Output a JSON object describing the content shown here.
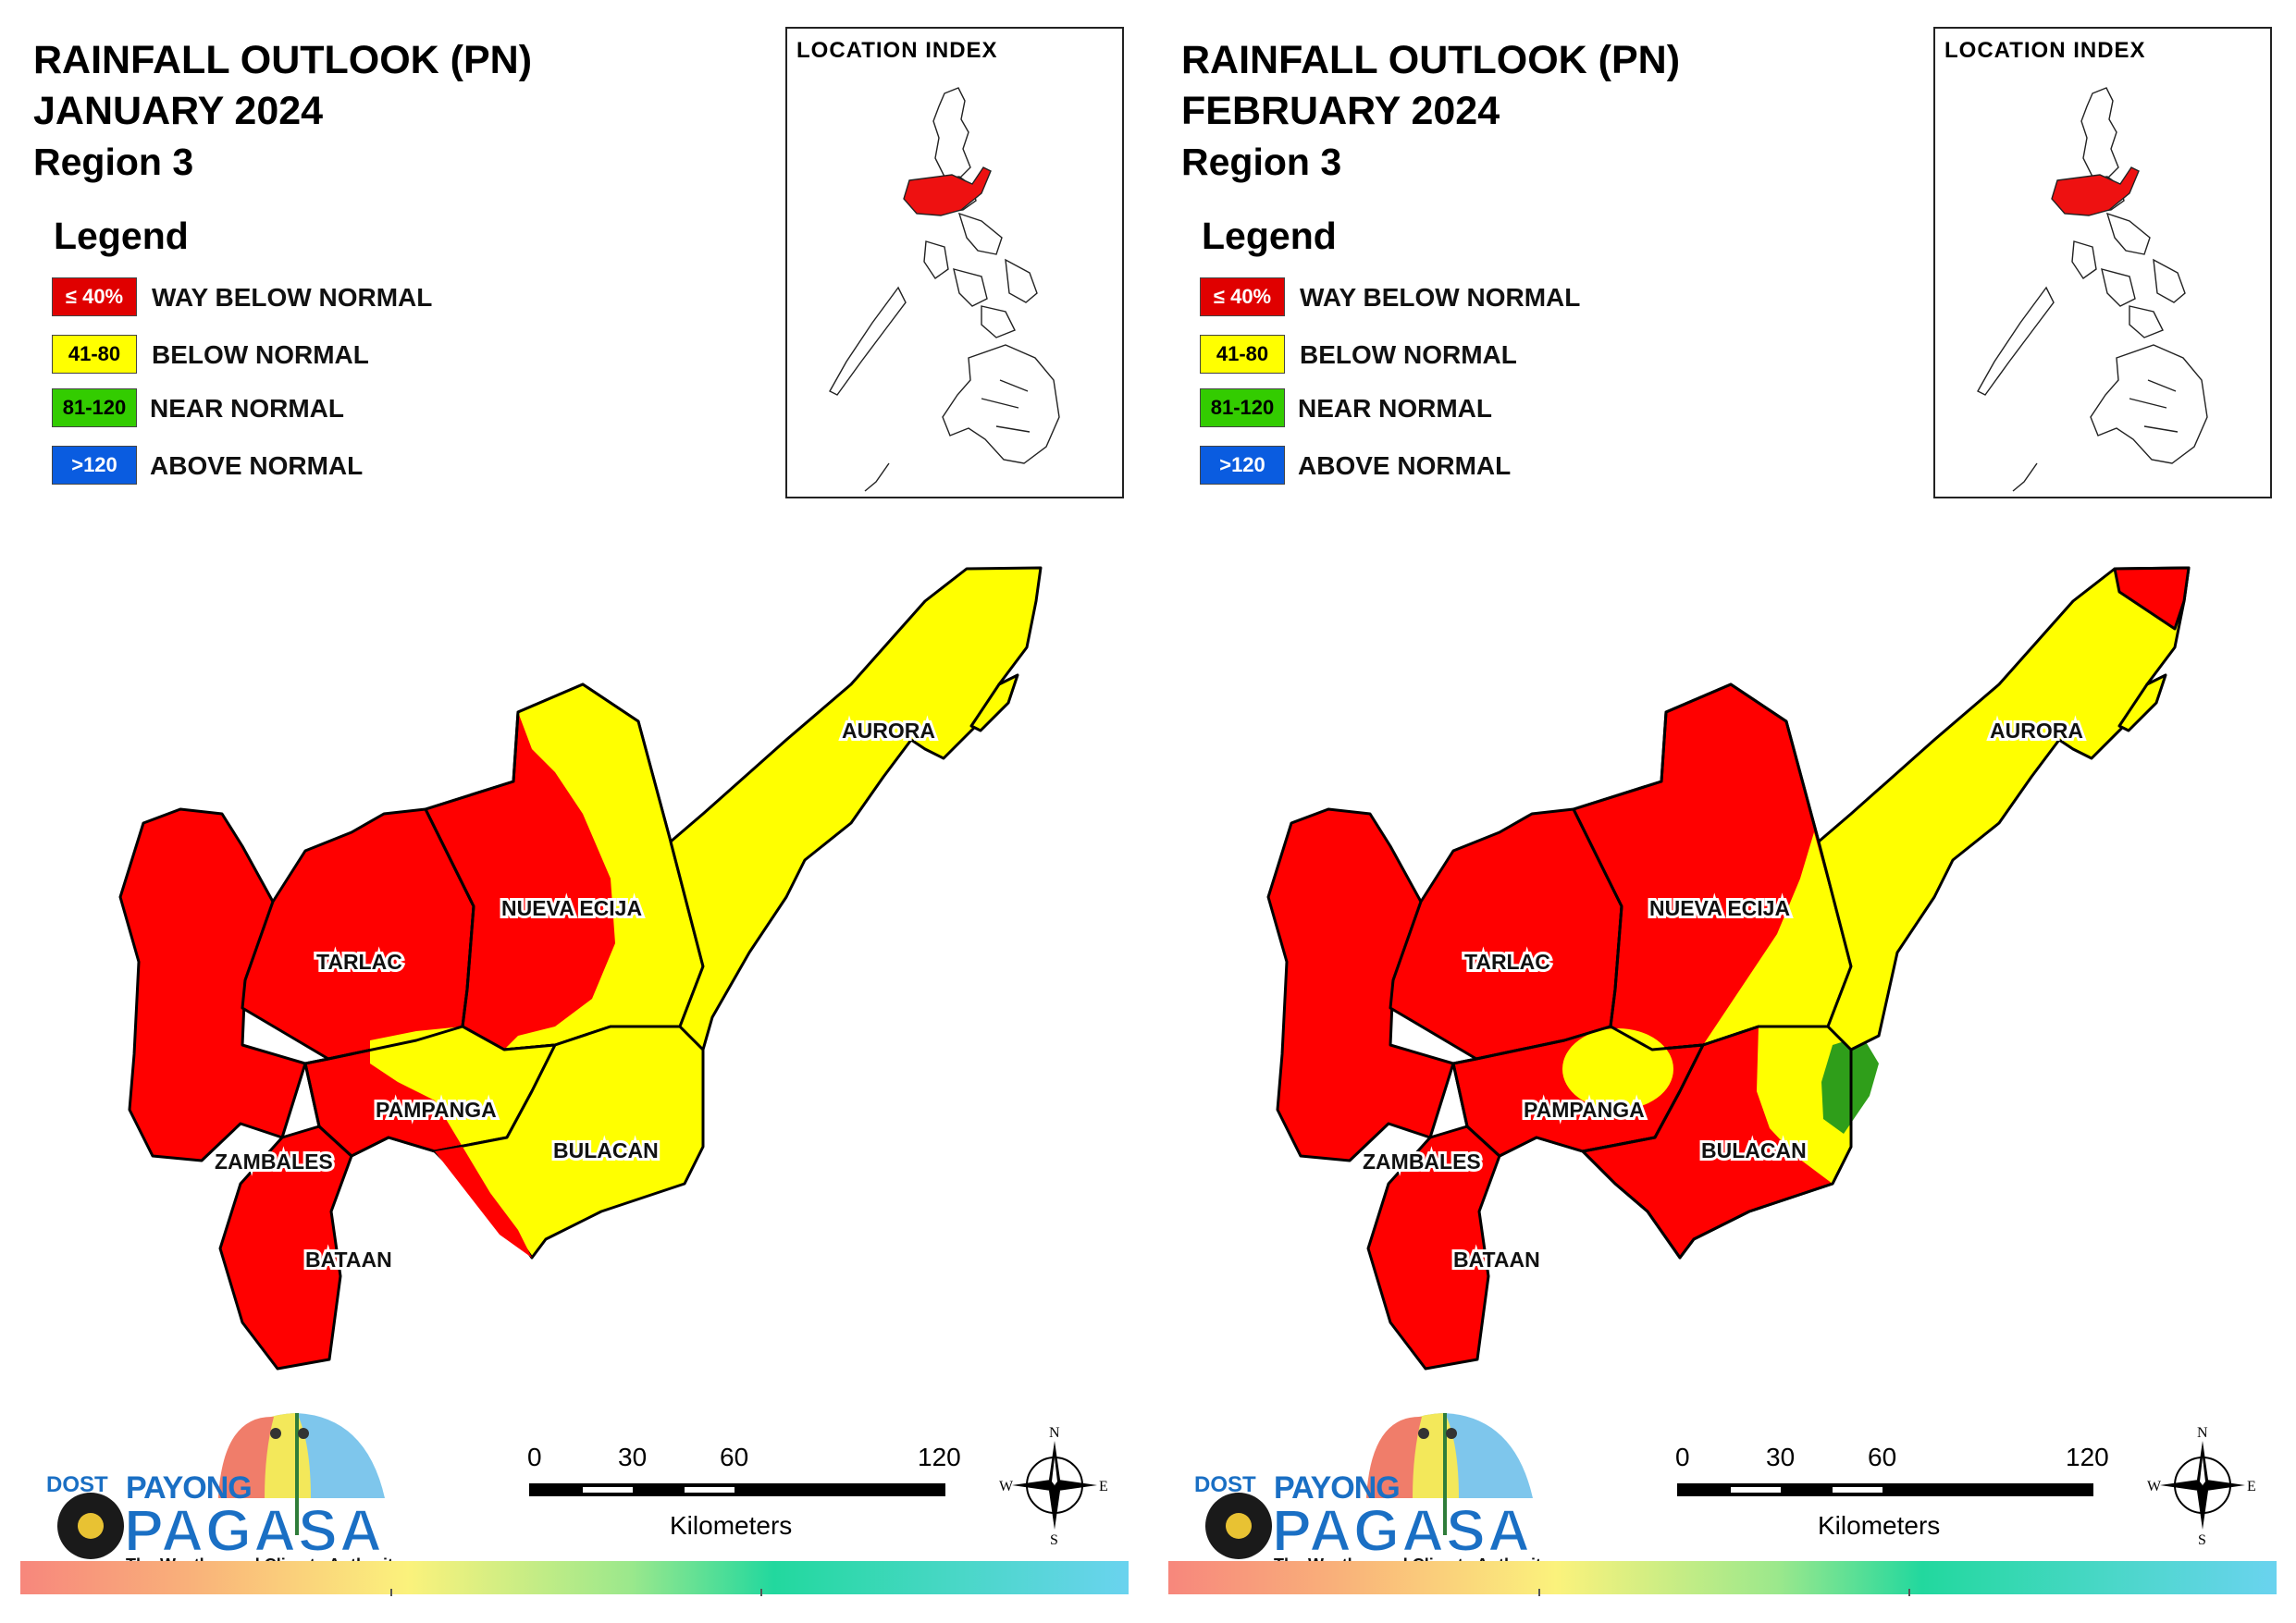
{
  "panels": [
    {
      "title": {
        "line1": "RAINFALL OUTLOOK (PN)",
        "line2": "JANUARY 2024",
        "line3": "Region 3"
      },
      "legend": {
        "heading": "Legend",
        "items": [
          {
            "code": "≤ 40%",
            "label": "WAY BELOW NORMAL",
            "color": "#e00000",
            "text_color": "#ffffff"
          },
          {
            "code": "41-80",
            "label": "BELOW NORMAL",
            "color": "#ffff00",
            "text_color": "#000000"
          },
          {
            "code": "81-120",
            "label": "NEAR NORMAL",
            "color": "#33cc00",
            "text_color": "#000000"
          },
          {
            "code": ">120",
            "label": "ABOVE NORMAL",
            "color": "#0a5ce0",
            "text_color": "#ffffff"
          }
        ]
      },
      "inset": {
        "title": "LOCATION INDEX"
      },
      "provinces": {
        "aurora": "AURORA",
        "nueva_ecija": "NUEVA ECIJA",
        "tarlac": "TARLAC",
        "pampanga": "PAMPANGA",
        "zambales": "ZAMBALES",
        "bulacan": "BULACAN",
        "bataan": "BATAAN"
      },
      "map_classes": {
        "zambales": "way-below",
        "bataan": "way-below",
        "tarlac": "way-below",
        "nueva_ecija": "way-below with below-normal east",
        "pampanga": "below-normal north, way-below south",
        "bulacan": "below-normal",
        "aurora": "below-normal"
      },
      "scale": {
        "ticks": [
          "0",
          "30",
          "60",
          "120"
        ],
        "unit": "Kilometers"
      },
      "compass": {
        "n": "N",
        "s": "S",
        "e": "E",
        "w": "W"
      },
      "logo": {
        "dost": "DOST",
        "payong": "PAYONG",
        "pagasa": "PAGASA",
        "tagline": "The Weather and Climate Authority"
      }
    },
    {
      "title": {
        "line1": "RAINFALL OUTLOOK (PN)",
        "line2": "FEBRUARY 2024",
        "line3": "Region 3"
      },
      "legend": {
        "heading": "Legend",
        "items": [
          {
            "code": "≤ 40%",
            "label": "WAY BELOW NORMAL",
            "color": "#e00000",
            "text_color": "#ffffff"
          },
          {
            "code": "41-80",
            "label": "BELOW NORMAL",
            "color": "#ffff00",
            "text_color": "#000000"
          },
          {
            "code": "81-120",
            "label": "NEAR NORMAL",
            "color": "#33cc00",
            "text_color": "#000000"
          },
          {
            "code": ">120",
            "label": "ABOVE NORMAL",
            "color": "#0a5ce0",
            "text_color": "#ffffff"
          }
        ]
      },
      "inset": {
        "title": "LOCATION INDEX"
      },
      "provinces": {
        "aurora": "AURORA",
        "nueva_ecija": "NUEVA ECIJA",
        "tarlac": "TARLAC",
        "pampanga": "PAMPANGA",
        "zambales": "ZAMBALES",
        "bulacan": "BULACAN",
        "bataan": "BATAAN"
      },
      "map_classes": {
        "zambales": "way-below",
        "bataan": "way-below",
        "tarlac": "way-below",
        "nueva_ecija": "way-below with below-normal southeast",
        "pampanga": "way-below with below-normal north",
        "bulacan": "way-below with below-normal and near-normal east",
        "aurora": "below-normal with way-below north tip"
      },
      "scale": {
        "ticks": [
          "0",
          "30",
          "60",
          "120"
        ],
        "unit": "Kilometers"
      },
      "compass": {
        "n": "N",
        "s": "S",
        "e": "E",
        "w": "W"
      },
      "logo": {
        "dost": "DOST",
        "payong": "PAYONG",
        "pagasa": "PAGASA",
        "tagline": "The Weather and Climate Authority"
      }
    }
  ],
  "colors": {
    "way_below": "#ff0000",
    "below": "#ffff00",
    "near": "#2f9e1a",
    "above": "#0a5ce0",
    "border": "#000000"
  }
}
